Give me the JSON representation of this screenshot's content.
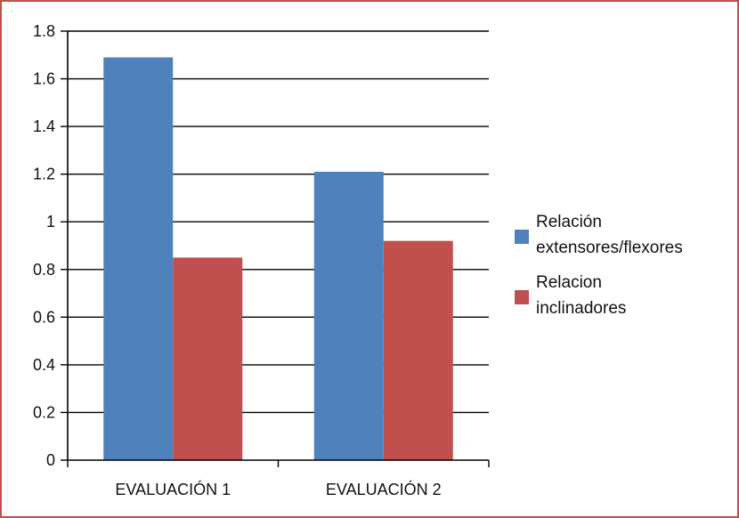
{
  "chart_data": {
    "type": "bar",
    "categories": [
      "EVALUACIÓN 1",
      "EVALUACIÓN 2"
    ],
    "series": [
      {
        "name": "Relación extensores/flexores",
        "legend_lines": [
          "Relación",
          "extensores/flexores"
        ],
        "values": [
          1.69,
          1.21
        ],
        "color": "#4f81bd"
      },
      {
        "name": "Relacion inclinadores",
        "legend_lines": [
          "Relacion",
          "inclinadores"
        ],
        "values": [
          0.85,
          0.92
        ],
        "color": "#c0504d"
      }
    ],
    "ylim": [
      0,
      1.8
    ],
    "yticks": [
      0,
      0.2,
      0.4,
      0.6,
      0.8,
      1,
      1.2,
      1.4,
      1.6,
      1.8
    ],
    "ytick_labels": [
      "0",
      "0.2",
      "0.4",
      "0.6",
      "0.8",
      "1",
      "1.2",
      "1.4",
      "1.6",
      "1.8"
    ],
    "grid": true,
    "legend": "right",
    "border_color": "#c0504d"
  }
}
